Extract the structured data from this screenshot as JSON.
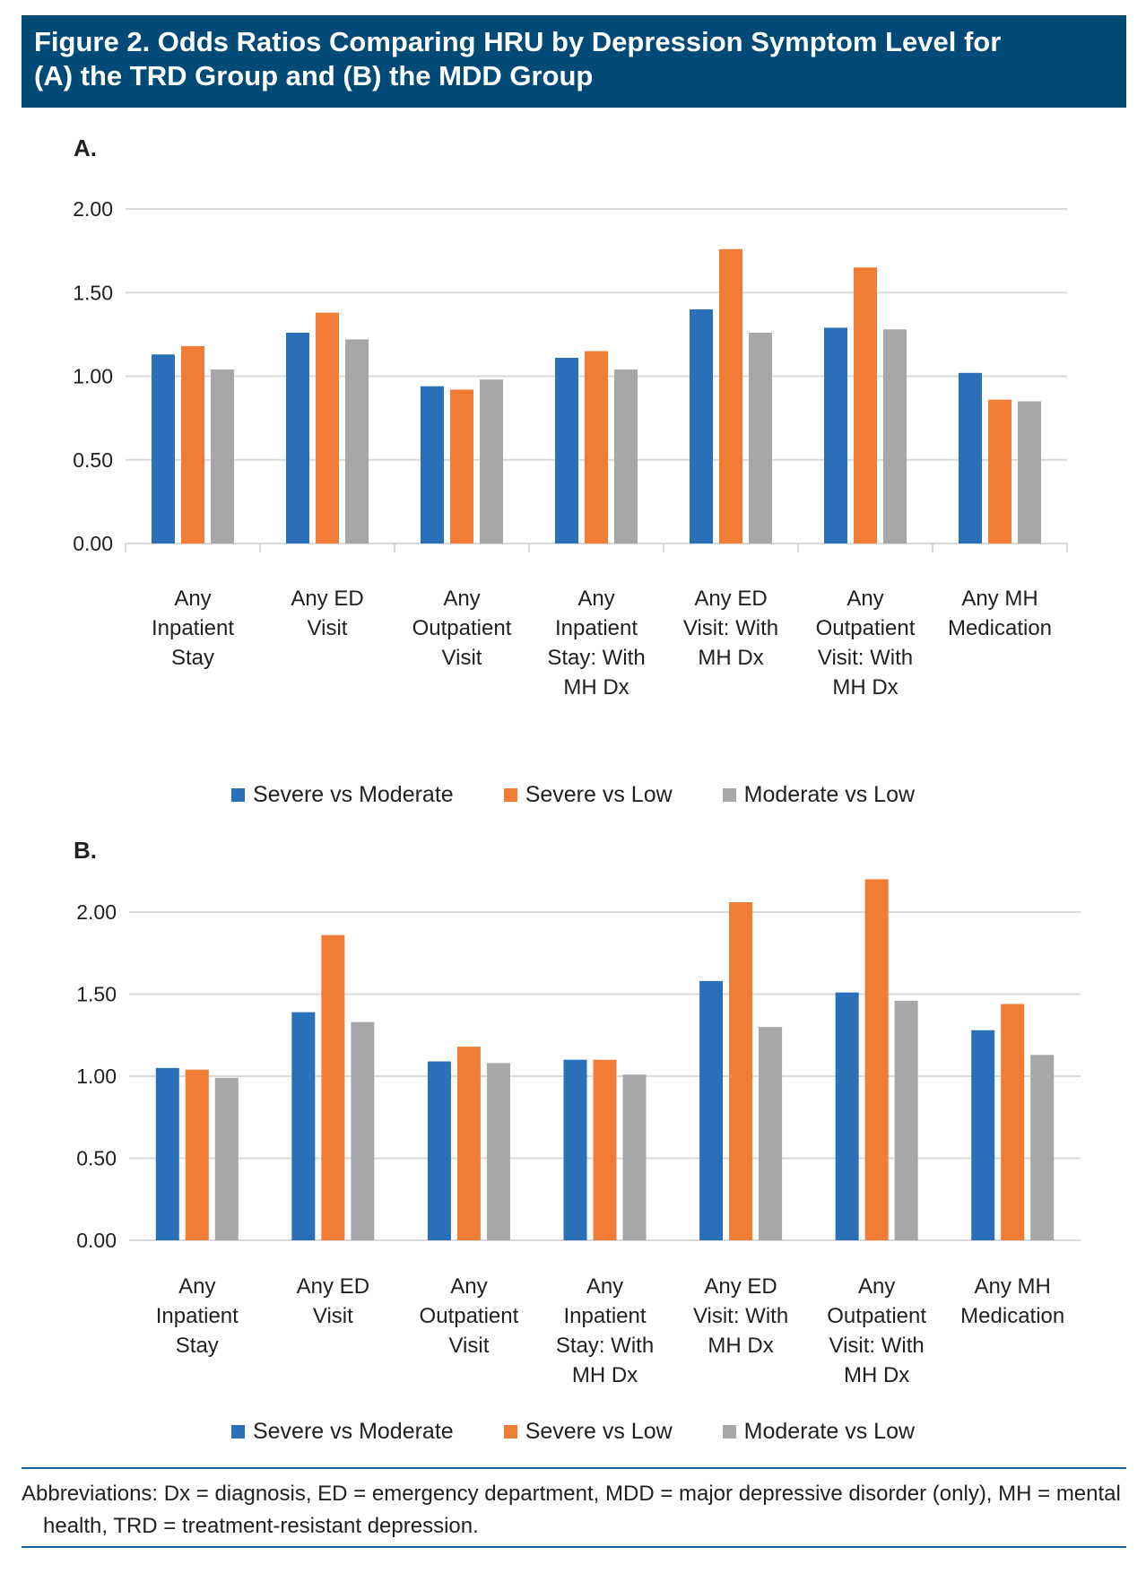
{
  "title": {
    "line1": "Figure 2. Odds Ratios Comparing HRU by Depression Symptom Level for",
    "line2": "(A) the TRD Group and (B) the MDD Group"
  },
  "colors": {
    "title_bg": "#004a78",
    "rule": "#1b5f8f",
    "gridline": "#d9d9d9"
  },
  "chart_data": [
    {
      "type": "bar",
      "panel": "A.",
      "title": "",
      "xlabel": "",
      "ylabel": "",
      "ylim": [
        0,
        2.0
      ],
      "yticks": [
        "0.00",
        "0.50",
        "1.00",
        "1.50",
        "2.00"
      ],
      "grid": true,
      "legend_position": "bottom-center",
      "categories": [
        [
          "Any",
          "Inpatient",
          "Stay"
        ],
        [
          "Any ED",
          "Visit"
        ],
        [
          "Any",
          "Outpatient",
          "Visit"
        ],
        [
          "Any",
          "Inpatient",
          "Stay: With",
          "MH Dx"
        ],
        [
          "Any ED",
          "Visit: With",
          "MH Dx"
        ],
        [
          "Any",
          "Outpatient",
          "Visit: With",
          "MH Dx"
        ],
        [
          "Any MH",
          "Medication"
        ]
      ],
      "series": [
        {
          "name": "Severe vs Moderate",
          "color": "#2a70b8",
          "values": [
            1.13,
            1.26,
            0.94,
            1.11,
            1.4,
            1.29,
            1.02
          ]
        },
        {
          "name": "Severe vs Low",
          "color": "#f07c36",
          "values": [
            1.18,
            1.38,
            0.92,
            1.15,
            1.76,
            1.65,
            0.86
          ]
        },
        {
          "name": "Moderate vs Low",
          "color": "#a7a6a8",
          "values": [
            1.04,
            1.22,
            0.98,
            1.04,
            1.26,
            1.28,
            0.85
          ]
        }
      ]
    },
    {
      "type": "bar",
      "panel": "B.",
      "title": "",
      "xlabel": "",
      "ylabel": "",
      "ylim": [
        0,
        2.0
      ],
      "yticks": [
        "0.00",
        "0.50",
        "1.00",
        "1.50",
        "2.00"
      ],
      "grid": true,
      "legend_position": "bottom-center",
      "categories": [
        [
          "Any",
          "Inpatient",
          "Stay"
        ],
        [
          "Any ED",
          "Visit"
        ],
        [
          "Any",
          "Outpatient",
          "Visit"
        ],
        [
          "Any",
          "Inpatient",
          "Stay: With",
          "MH Dx"
        ],
        [
          "Any ED",
          "Visit: With",
          "MH Dx"
        ],
        [
          "Any",
          "Outpatient",
          "Visit: With",
          "MH Dx"
        ],
        [
          "Any MH",
          "Medication"
        ]
      ],
      "series": [
        {
          "name": "Severe vs Moderate",
          "color": "#2a70b8",
          "values": [
            1.05,
            1.39,
            1.09,
            1.1,
            1.58,
            1.51,
            1.28
          ]
        },
        {
          "name": "Severe vs Low",
          "color": "#f07c36",
          "values": [
            1.04,
            1.86,
            1.18,
            1.1,
            2.06,
            2.2,
            1.44
          ]
        },
        {
          "name": "Moderate vs Low",
          "color": "#a7a6a8",
          "values": [
            0.99,
            1.33,
            1.08,
            1.01,
            1.3,
            1.46,
            1.13
          ]
        }
      ]
    }
  ],
  "footnote": "Abbreviations: Dx = diagnosis, ED = emergency department, MDD = major depressive disorder (only), MH = mental health, TRD = treatment-resistant depression."
}
